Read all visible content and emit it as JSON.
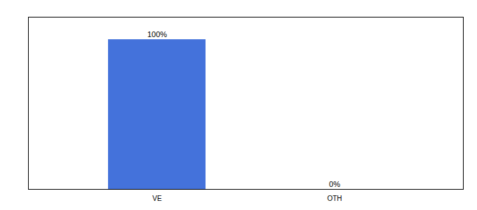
{
  "chart_data": {
    "type": "bar",
    "categories": [
      "VE",
      "OTH"
    ],
    "values": [
      100,
      0
    ],
    "value_labels": [
      "100%",
      "0%"
    ],
    "data_labels": true,
    "color": "#4472db",
    "ylim": [
      0,
      115
    ],
    "tick_labels": "x"
  }
}
